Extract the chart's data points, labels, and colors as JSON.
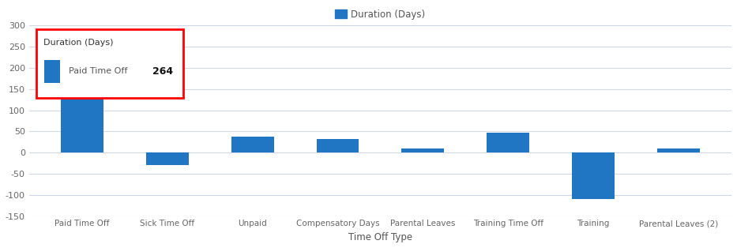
{
  "categories": [
    "Paid Time Off",
    "Sick Time Off",
    "Unpaid",
    "Compensatory Days",
    "Parental Leaves",
    "Training Time Off",
    "Training",
    "Parental Leaves (2)"
  ],
  "values": [
    264,
    -30,
    38,
    32,
    10,
    48,
    -110,
    10
  ],
  "bar_color": "#2176C4",
  "title_legend": "Duration (Days)",
  "xlabel": "Time Off Type",
  "ylim": [
    -150,
    300
  ],
  "yticks": [
    -150,
    -100,
    -50,
    0,
    50,
    100,
    150,
    200,
    250,
    300
  ],
  "background_color": "#ffffff",
  "grid_color": "#d0d8e8",
  "tooltip_title": "Duration (Days)",
  "tooltip_label": "Paid Time Off",
  "tooltip_value": "264"
}
